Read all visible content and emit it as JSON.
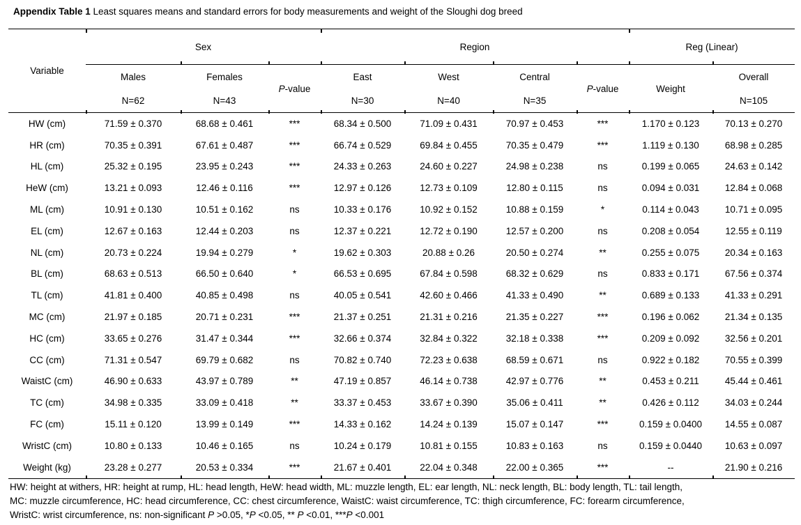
{
  "title": {
    "label_bold": "Appendix Table 1",
    "label_rest": " Least squares means and standard errors for body measurements and weight of the Sloughi dog breed"
  },
  "table": {
    "variable_header": "Variable",
    "group_headers": {
      "sex": "Sex",
      "region": "Region",
      "reg_linear": "Reg (Linear)"
    },
    "subheaders": {
      "males": {
        "label": "Males",
        "n": "N=62"
      },
      "females": {
        "label": "Females",
        "n": "N=43"
      },
      "pvalue_italic": "P",
      "pvalue_rest": "-value",
      "east": {
        "label": "East",
        "n": "N=30"
      },
      "west": {
        "label": "West",
        "n": "N=40"
      },
      "central": {
        "label": "Central",
        "n": "N=35"
      },
      "weight": "Weight",
      "overall": {
        "label": "Overall",
        "n": "N=105"
      }
    },
    "rows": [
      [
        "HW (cm)",
        "71.59 ± 0.370",
        "68.68 ± 0.461",
        "***",
        "68.34 ± 0.500",
        "71.09 ± 0.431",
        "70.97 ± 0.453",
        "***",
        "1.170 ± 0.123",
        "70.13 ± 0.270"
      ],
      [
        "HR (cm)",
        "70.35 ± 0.391",
        "67.61 ± 0.487",
        "***",
        "66.74 ± 0.529",
        "69.84 ± 0.455",
        "70.35 ± 0.479",
        "***",
        "1.119 ± 0.130",
        "68.98 ± 0.285"
      ],
      [
        "HL (cm)",
        "25.32 ± 0.195",
        "23.95 ± 0.243",
        "***",
        "24.33 ± 0.263",
        "24.60 ± 0.227",
        "24.98 ± 0.238",
        "ns",
        "0.199 ± 0.065",
        "24.63 ± 0.142"
      ],
      [
        "HeW (cm)",
        "13.21 ± 0.093",
        "12.46 ± 0.116",
        "***",
        "12.97 ± 0.126",
        "12.73 ± 0.109",
        "12.80 ± 0.115",
        "ns",
        "0.094 ± 0.031",
        "12.84 ± 0.068"
      ],
      [
        "ML (cm)",
        "10.91 ± 0.130",
        "10.51 ± 0.162",
        "ns",
        "10.33 ± 0.176",
        "10.92 ± 0.152",
        "10.88 ± 0.159",
        "*",
        "0.114 ± 0.043",
        "10.71 ± 0.095"
      ],
      [
        "EL (cm)",
        "12.67 ± 0.163",
        "12.44 ± 0.203",
        "ns",
        "12.37 ± 0.221",
        "12.72 ± 0.190",
        "12.57 ± 0.200",
        "ns",
        "0.208 ± 0.054",
        "12.55 ± 0.119"
      ],
      [
        "NL (cm)",
        "20.73 ± 0.224",
        "19.94 ± 0.279",
        "*",
        "19.62 ± 0.303",
        "20.88 ± 0.26",
        "20.50 ± 0.274",
        "**",
        "0.255 ± 0.075",
        "20.34 ± 0.163"
      ],
      [
        "BL (cm)",
        "68.63 ± 0.513",
        "66.50 ± 0.640",
        "*",
        "66.53 ± 0.695",
        "67.84 ± 0.598",
        "68.32 ± 0.629",
        "ns",
        "0.833 ± 0.171",
        "67.56 ± 0.374"
      ],
      [
        "TL (cm)",
        "41.81 ± 0.400",
        "40.85 ± 0.498",
        "ns",
        "40.05 ± 0.541",
        "42.60 ± 0.466",
        "41.33 ± 0.490",
        "**",
        "0.689 ± 0.133",
        "41.33 ± 0.291"
      ],
      [
        "MC (cm)",
        "21.97 ± 0.185",
        "20.71 ± 0.231",
        "***",
        "21.37 ± 0.251",
        "21.31 ± 0.216",
        "21.35 ± 0.227",
        "***",
        "0.196 ± 0.062",
        "21.34 ± 0.135"
      ],
      [
        "HC (cm)",
        "33.65 ± 0.276",
        "31.47 ± 0.344",
        "***",
        "32.66 ± 0.374",
        "32.84 ± 0.322",
        "32.18 ± 0.338",
        "***",
        "0.209 ± 0.092",
        "32.56 ± 0.201"
      ],
      [
        "CC (cm)",
        "71.31 ± 0.547",
        "69.79 ± 0.682",
        "ns",
        "70.82 ± 0.740",
        "72.23 ± 0.638",
        "68.59 ± 0.671",
        "ns",
        "0.922 ± 0.182",
        "70.55 ± 0.399"
      ],
      [
        "WaistC (cm)",
        "46.90 ± 0.633",
        "43.97 ± 0.789",
        "**",
        "47.19 ± 0.857",
        "46.14 ± 0.738",
        "42.97 ± 0.776",
        "**",
        "0.453 ± 0.211",
        "45.44 ± 0.461"
      ],
      [
        "TC (cm)",
        "34.98 ± 0.335",
        "33.09 ± 0.418",
        "**",
        "33.37 ± 0.453",
        "33.67 ± 0.390",
        "35.06 ± 0.411",
        "**",
        "0.426 ± 0.112",
        "34.03 ± 0.244"
      ],
      [
        "FC (cm)",
        "15.11 ± 0.120",
        "13.99 ± 0.149",
        "***",
        "14.33 ± 0.162",
        "14.24 ± 0.139",
        "15.07 ± 0.147",
        "***",
        "0.159 ± 0.0400",
        "14.55 ± 0.087"
      ],
      [
        "WristC (cm)",
        "10.80 ± 0.133",
        "10.46 ± 0.165",
        "ns",
        "10.24 ± 0.179",
        "10.81 ± 0.155",
        "10.83 ± 0.163",
        "ns",
        "0.159 ± 0.0440",
        "10.63 ± 0.097"
      ],
      [
        "Weight (kg)",
        "23.28 ± 0.277",
        "20.53 ± 0.334",
        "***",
        "21.67 ± 0.401",
        "22.04 ± 0.348",
        "22.00 ± 0.365",
        "***",
        "--",
        "21.90 ± 0.216"
      ]
    ]
  },
  "footnotes": {
    "line1": "HW: height at withers, HR: height at rump, HL: head length, HeW: head width, ML: muzzle length, EL: ear length, NL: neck length, BL: body length, TL: tail length,",
    "line2": "MC: muzzle circumference, HC: head circumference, CC: chest circumference, WaistC: waist circumference, TC: thigh circumference, FC: forearm circumference,",
    "line3_segments": [
      {
        "t": "WristC: wrist circumference, ns: non-significant "
      },
      {
        "t": "P",
        "i": true
      },
      {
        "t": " >0.05, *"
      },
      {
        "t": "P",
        "i": true
      },
      {
        "t": " <0.05, ** "
      },
      {
        "t": "P",
        "i": true
      },
      {
        "t": " <0.01, ***"
      },
      {
        "t": "P",
        "i": true
      },
      {
        "t": " <0.001"
      }
    ]
  }
}
